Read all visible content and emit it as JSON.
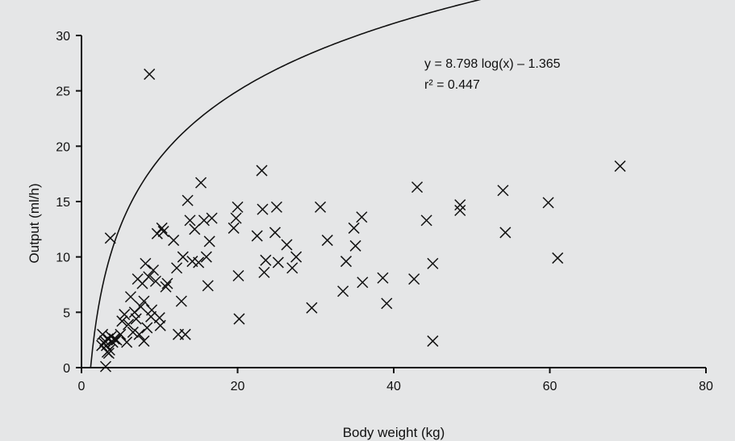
{
  "chart_data": {
    "type": "scatter",
    "xlabel": "Body weight (kg)",
    "ylabel": "Output (ml/h)",
    "xlim": [
      0,
      80
    ],
    "ylim": [
      0,
      30
    ],
    "xticks": [
      0,
      20,
      40,
      60,
      80
    ],
    "yticks": [
      0,
      5,
      10,
      15,
      20,
      25,
      30
    ],
    "grid": false,
    "marker": "x",
    "annotation": {
      "equation": "y = 8.798 log(x) – 1.365",
      "r2": "r² = 0.447"
    },
    "fit": {
      "form": "log",
      "a": 8.798,
      "b": -1.365
    },
    "points": [
      [
        3.0,
        2.4
      ],
      [
        3.2,
        2.0
      ],
      [
        3.4,
        2.6
      ],
      [
        3.6,
        1.6
      ],
      [
        3.8,
        2.8
      ],
      [
        3.3,
        1.4
      ],
      [
        2.9,
        2.2
      ],
      [
        3.5,
        1.3
      ],
      [
        3.1,
        0.1
      ],
      [
        3.7,
        11.7
      ],
      [
        2.6,
        2.0
      ],
      [
        4.0,
        2.3
      ],
      [
        2.7,
        3.0
      ],
      [
        4.2,
        2.6
      ],
      [
        4.5,
        2.5
      ],
      [
        5.0,
        3.0
      ],
      [
        5.2,
        4.2
      ],
      [
        5.5,
        4.8
      ],
      [
        5.8,
        2.3
      ],
      [
        6.0,
        3.9
      ],
      [
        6.3,
        6.4
      ],
      [
        6.6,
        3.2
      ],
      [
        6.8,
        5.0
      ],
      [
        7.0,
        4.4
      ],
      [
        7.2,
        8.0
      ],
      [
        7.4,
        3.0
      ],
      [
        7.6,
        5.5
      ],
      [
        7.8,
        7.6
      ],
      [
        8.0,
        2.4
      ],
      [
        8.0,
        6.0
      ],
      [
        8.2,
        9.4
      ],
      [
        8.4,
        3.6
      ],
      [
        8.6,
        8.2
      ],
      [
        8.7,
        26.5
      ],
      [
        8.9,
        4.6
      ],
      [
        9.0,
        5.2
      ],
      [
        9.2,
        8.8
      ],
      [
        9.5,
        7.8
      ],
      [
        9.7,
        12.1
      ],
      [
        10.0,
        4.5
      ],
      [
        10.1,
        3.8
      ],
      [
        10.3,
        12.6
      ],
      [
        10.5,
        12.3
      ],
      [
        10.8,
        7.3
      ],
      [
        11.0,
        7.6
      ],
      [
        11.8,
        11.5
      ],
      [
        12.2,
        9.0
      ],
      [
        12.4,
        3.0
      ],
      [
        12.8,
        6.0
      ],
      [
        13.0,
        10.0
      ],
      [
        13.3,
        3.0
      ],
      [
        13.6,
        15.1
      ],
      [
        13.9,
        13.3
      ],
      [
        14.2,
        9.6
      ],
      [
        14.5,
        12.5
      ],
      [
        15.0,
        9.5
      ],
      [
        15.3,
        16.7
      ],
      [
        15.7,
        13.3
      ],
      [
        16.0,
        10.0
      ],
      [
        16.2,
        7.4
      ],
      [
        16.4,
        11.4
      ],
      [
        16.7,
        13.5
      ],
      [
        19.5,
        12.6
      ],
      [
        19.8,
        13.5
      ],
      [
        20.0,
        14.5
      ],
      [
        20.1,
        8.3
      ],
      [
        20.2,
        4.4
      ],
      [
        22.5,
        11.9
      ],
      [
        23.1,
        17.8
      ],
      [
        23.2,
        14.3
      ],
      [
        23.4,
        8.6
      ],
      [
        23.6,
        9.7
      ],
      [
        24.8,
        12.2
      ],
      [
        25.0,
        14.5
      ],
      [
        25.2,
        9.5
      ],
      [
        26.3,
        11.1
      ],
      [
        27.0,
        9.0
      ],
      [
        27.5,
        10.0
      ],
      [
        29.5,
        5.4
      ],
      [
        30.6,
        14.5
      ],
      [
        31.5,
        11.5
      ],
      [
        33.5,
        6.9
      ],
      [
        33.9,
        9.6
      ],
      [
        34.9,
        12.6
      ],
      [
        35.1,
        11.0
      ],
      [
        35.9,
        13.6
      ],
      [
        36.0,
        7.7
      ],
      [
        38.6,
        8.1
      ],
      [
        39.1,
        5.8
      ],
      [
        42.6,
        8.0
      ],
      [
        43.0,
        16.3
      ],
      [
        44.2,
        13.3
      ],
      [
        45.0,
        9.4
      ],
      [
        45.0,
        2.4
      ],
      [
        48.5,
        14.7
      ],
      [
        48.5,
        14.2
      ],
      [
        54.0,
        16.0
      ],
      [
        54.3,
        12.2
      ],
      [
        59.8,
        14.9
      ],
      [
        61.0,
        9.9
      ],
      [
        69.0,
        18.2
      ]
    ]
  }
}
